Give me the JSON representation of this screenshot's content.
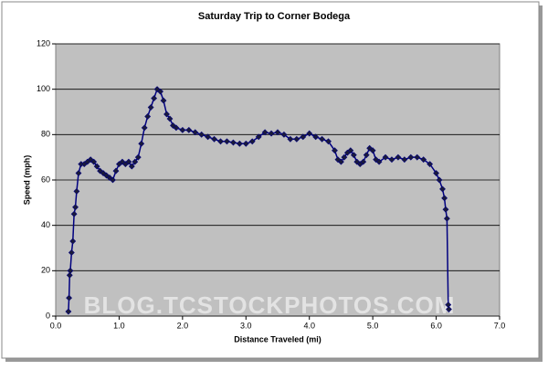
{
  "chart_data": {
    "type": "line",
    "title": "Saturday Trip to Corner Bodega",
    "x_label": "Distance Traveled (mi)",
    "y_label": "Speed (mph)",
    "watermark": "BLOG.TCSTOCKPHOTOS.COM",
    "x": [
      0.2,
      0.21,
      0.22,
      0.23,
      0.25,
      0.27,
      0.29,
      0.31,
      0.33,
      0.36,
      0.4,
      0.45,
      0.5,
      0.55,
      0.6,
      0.65,
      0.7,
      0.75,
      0.8,
      0.85,
      0.9,
      0.95,
      1.0,
      1.05,
      1.1,
      1.15,
      1.2,
      1.25,
      1.3,
      1.35,
      1.4,
      1.45,
      1.5,
      1.55,
      1.6,
      1.65,
      1.7,
      1.75,
      1.8,
      1.85,
      1.9,
      2.0,
      2.1,
      2.2,
      2.3,
      2.4,
      2.5,
      2.6,
      2.7,
      2.8,
      2.9,
      3.0,
      3.1,
      3.2,
      3.3,
      3.4,
      3.5,
      3.6,
      3.7,
      3.8,
      3.9,
      4.0,
      4.1,
      4.2,
      4.3,
      4.4,
      4.45,
      4.5,
      4.55,
      4.6,
      4.65,
      4.7,
      4.75,
      4.8,
      4.85,
      4.9,
      4.95,
      5.0,
      5.05,
      5.1,
      5.2,
      5.3,
      5.4,
      5.5,
      5.6,
      5.7,
      5.8,
      5.9,
      6.0,
      6.05,
      6.1,
      6.13,
      6.15,
      6.17,
      6.19,
      6.2
    ],
    "series": [
      {
        "name": "Speed",
        "color": "#000080",
        "values": [
          2,
          8,
          18,
          20,
          28,
          33,
          45,
          48,
          55,
          63,
          67,
          67,
          68,
          69,
          68,
          66,
          64,
          63,
          62,
          61,
          60,
          64,
          67,
          68,
          67,
          68,
          66,
          68,
          70,
          76,
          83,
          88,
          92,
          96,
          100,
          99,
          95,
          89,
          87,
          84,
          83,
          82,
          82,
          81,
          80,
          79,
          78,
          77,
          77,
          76.5,
          76,
          76,
          77,
          79,
          81,
          80.5,
          81,
          80,
          78,
          78,
          79,
          80.5,
          79,
          78,
          77,
          73,
          69,
          68,
          70,
          72,
          73,
          71,
          68,
          67,
          68,
          71,
          74,
          73,
          69,
          68,
          70,
          69,
          70,
          69,
          70,
          70,
          69,
          67,
          63,
          60,
          56,
          52,
          47,
          43,
          5,
          3
        ]
      }
    ],
    "xlim": [
      0,
      7
    ],
    "xticks": [
      {
        "value": 0,
        "label": "0.0"
      },
      {
        "value": 1,
        "label": "1.0"
      },
      {
        "value": 2,
        "label": "2.0"
      },
      {
        "value": 3,
        "label": "3.0"
      },
      {
        "value": 4,
        "label": "4.0"
      },
      {
        "value": 5,
        "label": "5.0"
      },
      {
        "value": 6,
        "label": "6.0"
      },
      {
        "value": 7,
        "label": "7.0"
      }
    ],
    "ylim": [
      0,
      120
    ],
    "yticks": [
      0,
      20,
      40,
      60,
      80,
      100,
      120
    ],
    "grid": true,
    "plot_background": "#c0c0c0"
  }
}
